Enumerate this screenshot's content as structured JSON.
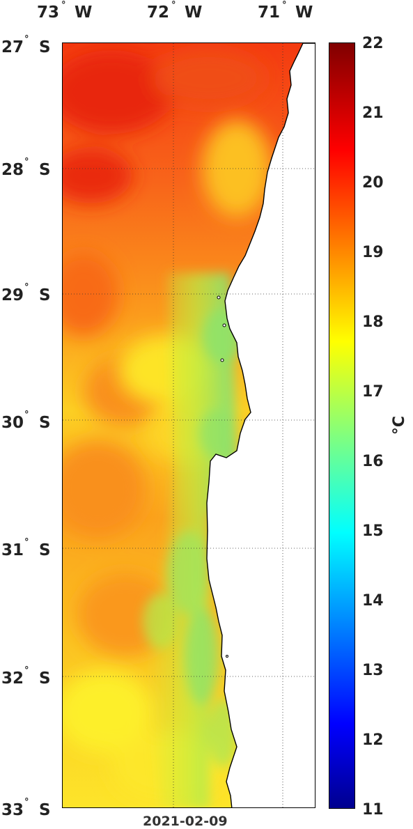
{
  "map": {
    "lon_labels": [
      "73",
      "72",
      "71"
    ],
    "lon_suffix": "W",
    "lat_labels": [
      "27",
      "28",
      "29",
      "30",
      "31",
      "32",
      "33"
    ],
    "lat_suffix": "S",
    "degree_symbol": "°",
    "date": "2021-02-09",
    "variable": "sea surface temperature",
    "lon_range": [
      73,
      70.7
    ],
    "lat_range": [
      27,
      33
    ]
  },
  "colorbar": {
    "ticks": [
      "22",
      "21",
      "20",
      "19",
      "18",
      "17",
      "16",
      "15",
      "14",
      "13",
      "12",
      "11"
    ],
    "unit": "°C",
    "range": [
      11,
      22
    ],
    "colormap": "jet"
  },
  "colors": {
    "land": "#ffffff",
    "coast": "#000000",
    "grid": "#333333"
  }
}
